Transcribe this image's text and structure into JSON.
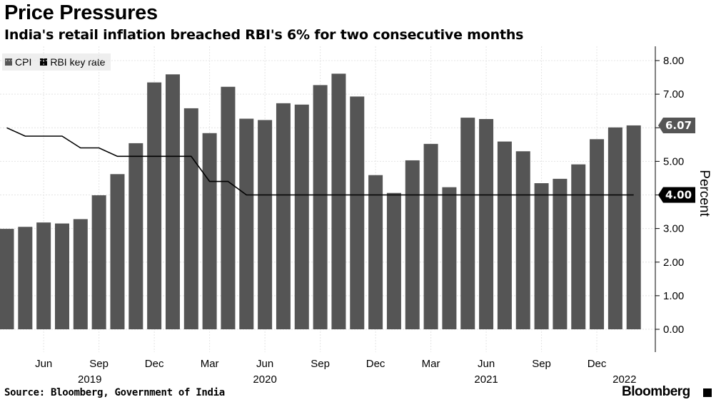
{
  "chart_data": {
    "type": "bar",
    "title": "Price Pressures",
    "subtitle": "India's retail inflation breached RBI's 6% for two consecutive months",
    "ylabel": "Percent",
    "ylim": [
      -0.6,
      8.3
    ],
    "yticks": [
      "0.00",
      "1.00",
      "2.00",
      "3.00",
      "4.00",
      "5.00",
      "6.00",
      "7.00",
      "8.00"
    ],
    "months": [
      "Apr 2019",
      "May 2019",
      "Jun 2019",
      "Jul 2019",
      "Aug 2019",
      "Sep 2019",
      "Oct 2019",
      "Nov 2019",
      "Dec 2019",
      "Jan 2020",
      "Feb 2020",
      "Mar 2020",
      "Apr 2020",
      "May 2020",
      "Jun 2020",
      "Jul 2020",
      "Aug 2020",
      "Sep 2020",
      "Oct 2020",
      "Nov 2020",
      "Dec 2020",
      "Jan 2021",
      "Feb 2021",
      "Mar 2021",
      "Apr 2021",
      "May 2021",
      "Jun 2021",
      "Jul 2021",
      "Aug 2021",
      "Sep 2021",
      "Oct 2021",
      "Nov 2021",
      "Dec 2021",
      "Jan 2022",
      "Feb 2022"
    ],
    "x_tick_labels": [
      {
        "index": 2,
        "label": "Jun"
      },
      {
        "index": 5,
        "label": "Sep"
      },
      {
        "index": 8,
        "label": "Dec"
      },
      {
        "index": 11,
        "label": "Mar"
      },
      {
        "index": 14,
        "label": "Jun"
      },
      {
        "index": 17,
        "label": "Sep"
      },
      {
        "index": 20,
        "label": "Dec"
      },
      {
        "index": 23,
        "label": "Mar"
      },
      {
        "index": 26,
        "label": "Jun"
      },
      {
        "index": 29,
        "label": "Sep"
      },
      {
        "index": 32,
        "label": "Dec"
      }
    ],
    "year_labels": [
      {
        "index": 4.5,
        "label": "2019"
      },
      {
        "index": 14,
        "label": "2020"
      },
      {
        "index": 26,
        "label": "2021"
      },
      {
        "index": 33.5,
        "label": "2022"
      }
    ],
    "series": [
      {
        "name": "CPI",
        "kind": "bar",
        "color": "#555555",
        "values": [
          2.99,
          3.05,
          3.18,
          3.15,
          3.28,
          3.99,
          4.62,
          5.54,
          7.35,
          7.59,
          6.58,
          5.84,
          7.22,
          6.27,
          6.23,
          6.73,
          6.69,
          7.27,
          7.61,
          6.93,
          4.59,
          4.06,
          5.03,
          5.52,
          4.23,
          6.3,
          6.26,
          5.59,
          5.3,
          4.35,
          4.48,
          4.91,
          5.66,
          6.01,
          6.07
        ]
      },
      {
        "name": "RBI key rate",
        "kind": "line",
        "color": "#000000",
        "values": [
          6.0,
          5.75,
          5.75,
          5.75,
          5.4,
          5.4,
          5.15,
          5.15,
          5.15,
          5.15,
          5.15,
          4.4,
          4.4,
          4.0,
          4.0,
          4.0,
          4.0,
          4.0,
          4.0,
          4.0,
          4.0,
          4.0,
          4.0,
          4.0,
          4.0,
          4.0,
          4.0,
          4.0,
          4.0,
          4.0,
          4.0,
          4.0,
          4.0,
          4.0,
          4.0
        ]
      }
    ],
    "last_value_tags": [
      {
        "series": "CPI",
        "label": "6.07",
        "value": 6.07,
        "color": "#555555"
      },
      {
        "series": "RBI key rate",
        "label": "4.00",
        "value": 4.0,
        "color": "#000000"
      }
    ],
    "grid": true,
    "legend": "top-left"
  },
  "legend": {
    "cpi_label": "CPI",
    "rate_label": "RBI key rate"
  },
  "source": "Source: Bloomberg, Government of India",
  "brand": "Bloomberg"
}
